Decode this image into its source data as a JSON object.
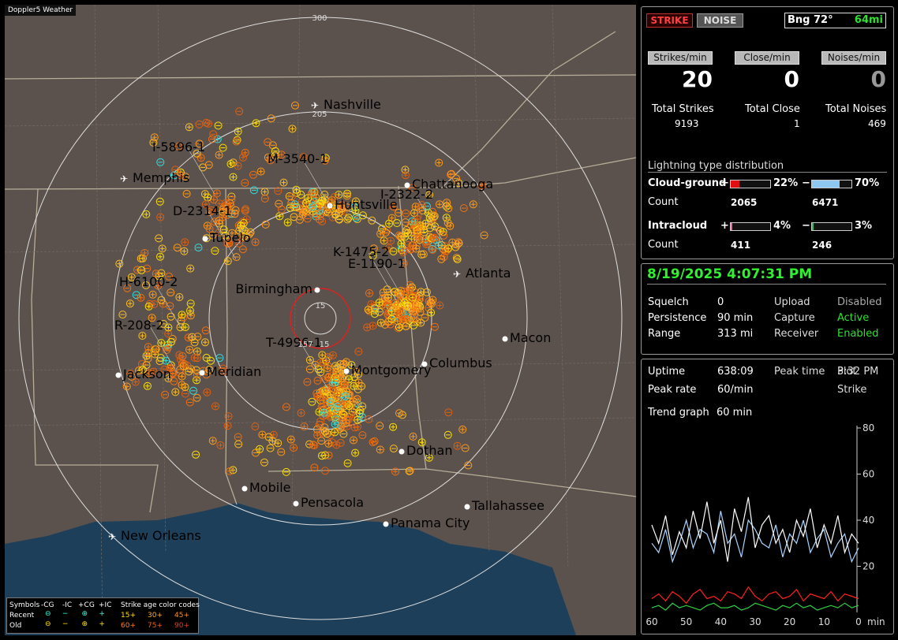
{
  "map": {
    "title": "Doppler5 Weather",
    "ring_labels": [
      "300",
      "205",
      "15",
      "157",
      "15"
    ],
    "cities": [
      "Nashville",
      "Memphis",
      "Chattanooga",
      "Huntsville",
      "Tupelo",
      "Atlanta",
      "Birmingham",
      "Macon",
      "Columbus",
      "Montgomery",
      "Jackson",
      "Meridian",
      "Dothan",
      "Mobile",
      "Pensacola",
      "Tallahassee",
      "Panama City",
      "New Orleans"
    ],
    "sensors": [
      "I-5896-1",
      "M-3540-1",
      "D-2314-1",
      "I-2322-2",
      "K-1475-2",
      "E-1190-1",
      "H-6100-2",
      "R-208-2",
      "T-4996-1"
    ]
  },
  "legend": {
    "symbols": "Symbols",
    "types": [
      "-CG",
      "-IC",
      "+CG",
      "+IC"
    ],
    "age_title": "Strike age color codes",
    "recent": "Recent",
    "old": "Old",
    "recent_ages": [
      "15+",
      "30+",
      "45+"
    ],
    "old_ages": [
      "60+",
      "75+",
      "90+"
    ]
  },
  "header": {
    "strike": "STRIKE",
    "noise": "NOISE",
    "bearing": "Bng 72°",
    "distance": "64mi"
  },
  "rates": [
    {
      "label": "Strikes/min",
      "value": 20
    },
    {
      "label": "Close/min",
      "value": 0
    },
    {
      "label": "Noises/min",
      "value": 0
    }
  ],
  "totals": [
    {
      "label": "Total Strikes",
      "value": 9193
    },
    {
      "label": "Total Close",
      "value": 1
    },
    {
      "label": "Total Noises",
      "value": 469
    }
  ],
  "distribution": {
    "title": "Lightning type distribution",
    "rows": [
      {
        "name": "Cloud-ground",
        "count_label": "Count",
        "plus": {
          "sign": "+",
          "percent": 22,
          "percent_label": "22%",
          "count": 2065,
          "color": "#e01010"
        },
        "minus": {
          "sign": "−",
          "percent": 70,
          "percent_label": "70%",
          "count": 6471,
          "color": "#8ec8f0"
        }
      },
      {
        "name": "Intracloud",
        "count_label": "Count",
        "plus": {
          "sign": "+",
          "percent": 4,
          "percent_label": "4%",
          "count": 411,
          "color": "#e070a0"
        },
        "minus": {
          "sign": "−",
          "percent": 3,
          "percent_label": "3%",
          "count": 246,
          "color": "#20c060"
        }
      }
    ]
  },
  "status": {
    "datetime": "8/19/2025 4:07:31 PM",
    "rows": [
      [
        "Squelch",
        "0",
        "Upload",
        "Disabled"
      ],
      [
        "Persistence",
        "90 min",
        "Capture",
        "Active"
      ],
      [
        "Range",
        "313 mi",
        "Receiver",
        "Enabled"
      ]
    ]
  },
  "stats": {
    "rows": [
      [
        "Uptime",
        "638:09",
        "Peak time",
        "3:32 PM",
        "Plot"
      ],
      [
        "Peak rate",
        "60/min",
        "",
        "",
        "Strike"
      ]
    ],
    "trend_label": "Trend graph",
    "trend_value": "60 min"
  },
  "trend_graph": {
    "type": "line",
    "x_unit": "min",
    "x": [
      60,
      58,
      56,
      54,
      52,
      50,
      48,
      46,
      44,
      42,
      40,
      38,
      36,
      34,
      32,
      30,
      28,
      26,
      24,
      22,
      20,
      18,
      16,
      14,
      12,
      10,
      8,
      6,
      4,
      2,
      0
    ],
    "xlim": [
      60,
      0
    ],
    "xticks": [
      60,
      50,
      40,
      30,
      20,
      10,
      0
    ],
    "ylim": [
      0,
      80
    ],
    "yticks": [
      20,
      40,
      60,
      80
    ],
    "series": [
      {
        "color": "#ffffff",
        "values": [
          38,
          30,
          42,
          25,
          35,
          28,
          44,
          32,
          48,
          30,
          40,
          22,
          45,
          35,
          50,
          28,
          38,
          42,
          30,
          36,
          26,
          40,
          33,
          45,
          28,
          38,
          30,
          42,
          26,
          34,
          30
        ]
      },
      {
        "color": "#a8d4ff",
        "values": [
          30,
          26,
          36,
          22,
          30,
          40,
          28,
          36,
          34,
          26,
          44,
          30,
          34,
          24,
          40,
          36,
          30,
          28,
          38,
          24,
          34,
          30,
          40,
          26,
          32,
          36,
          24,
          30,
          34,
          22,
          28
        ]
      },
      {
        "color": "#ff2020",
        "values": [
          6,
          8,
          5,
          9,
          7,
          4,
          8,
          10,
          6,
          7,
          5,
          9,
          8,
          6,
          11,
          7,
          5,
          8,
          9,
          6,
          7,
          10,
          5,
          8,
          7,
          6,
          9,
          5,
          8,
          7,
          6
        ]
      },
      {
        "color": "#30d040",
        "values": [
          2,
          3,
          1,
          4,
          2,
          3,
          2,
          1,
          3,
          4,
          2,
          2,
          3,
          1,
          2,
          4,
          3,
          2,
          1,
          3,
          2,
          4,
          2,
          3,
          1,
          2,
          3,
          2,
          4,
          2,
          3
        ]
      }
    ]
  }
}
